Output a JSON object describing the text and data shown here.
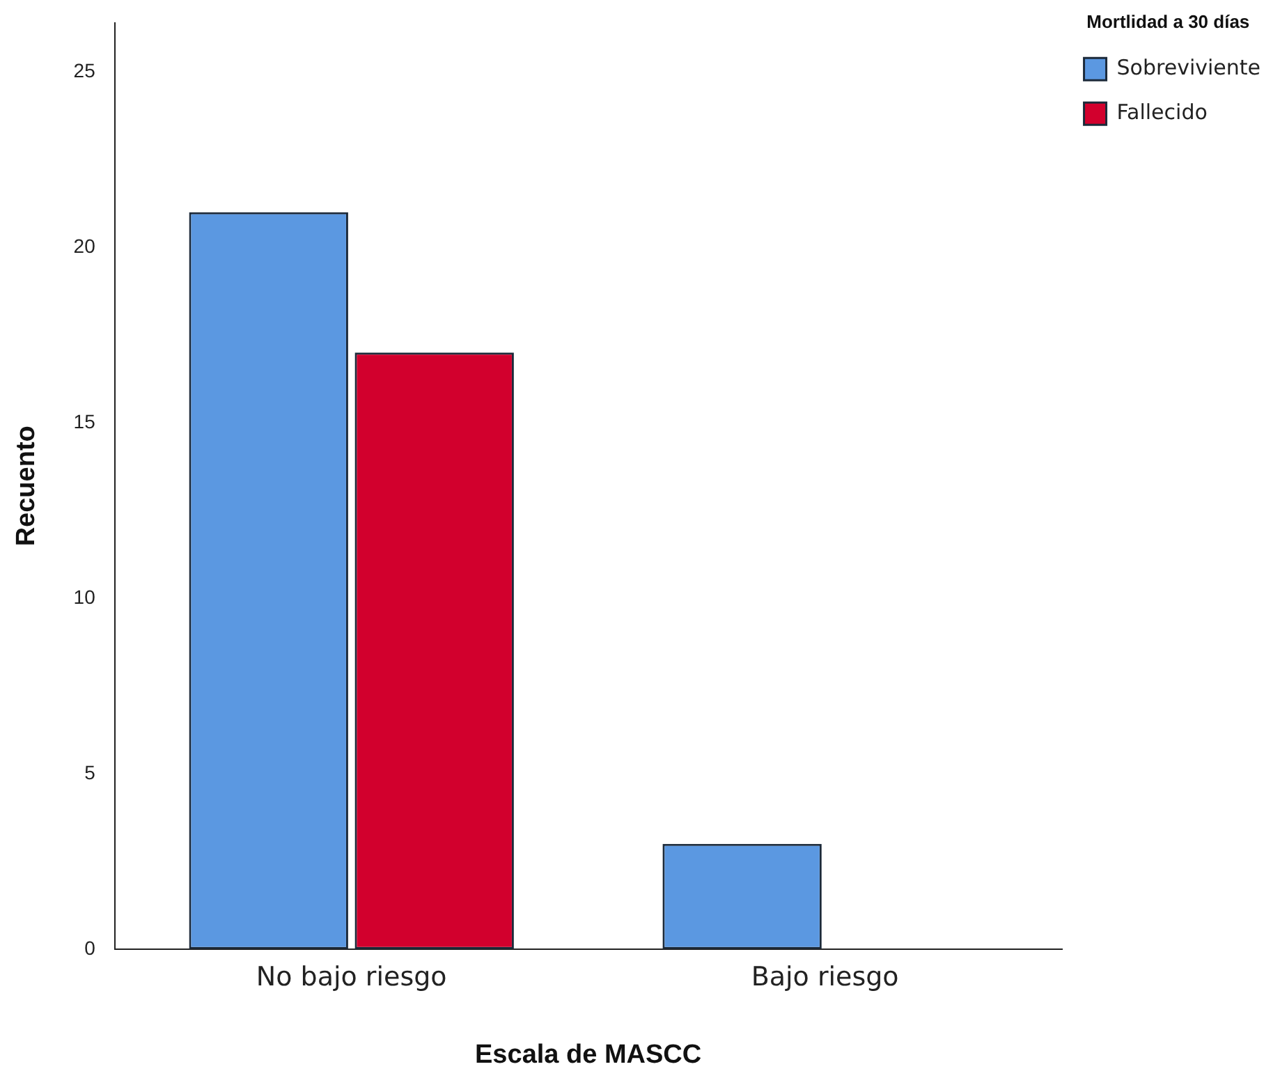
{
  "chart_data": {
    "type": "bar",
    "xlabel": "Escala de MASCC",
    "ylabel": "Recuento",
    "legend_title": "Mortlidad a 30 días",
    "categories": [
      "No bajo riesgo",
      "Bajo riesgo"
    ],
    "series": [
      {
        "name": "Sobreviviente",
        "color": "#5b98e1",
        "values": [
          21,
          3
        ]
      },
      {
        "name": "Fallecido",
        "color": "#d2002d",
        "values": [
          17,
          null
        ]
      }
    ],
    "ylim": [
      0,
      26.4
    ],
    "yticks": [
      0,
      5,
      10,
      15,
      20,
      25
    ],
    "grid": false,
    "legend": "top right"
  }
}
